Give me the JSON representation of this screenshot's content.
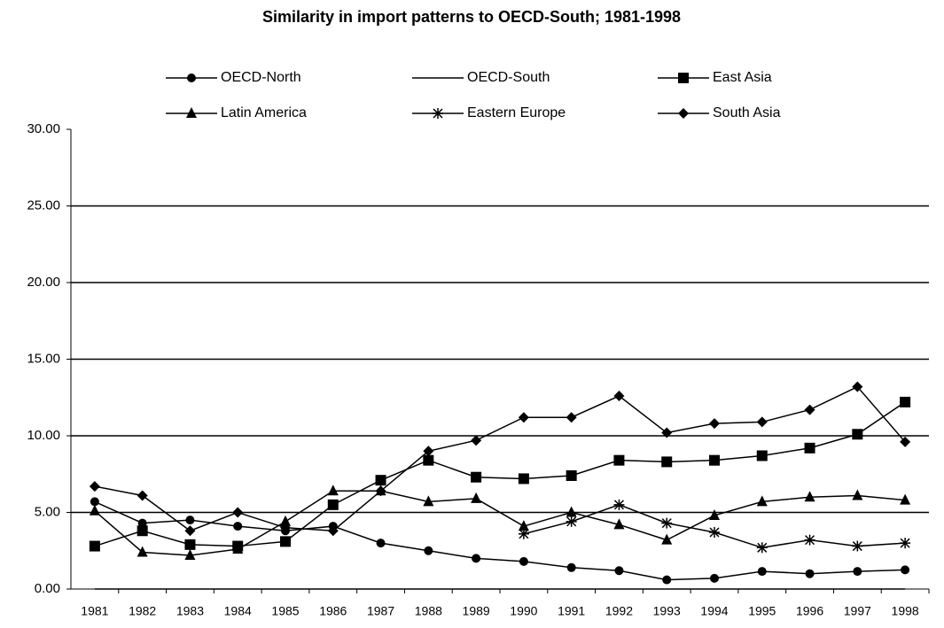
{
  "chart_data": {
    "type": "line",
    "title": "Similarity in import patterns to OECD-South; 1981-1998",
    "categories": [
      "1981",
      "1982",
      "1983",
      "1984",
      "1985",
      "1986",
      "1987",
      "1988",
      "1989",
      "1990",
      "1991",
      "1992",
      "1993",
      "1994",
      "1995",
      "1996",
      "1997",
      "1998"
    ],
    "series": [
      {
        "name": "OECD-North",
        "color": "#000000",
        "marker": "circle",
        "values": [
          5.7,
          4.3,
          4.5,
          4.1,
          3.8,
          4.1,
          3.0,
          2.5,
          2.0,
          1.8,
          1.4,
          1.2,
          0.6,
          0.7,
          1.15,
          1.0,
          1.15,
          1.25
        ]
      },
      {
        "name": "OECD-South",
        "color": "#000000",
        "marker": "none",
        "values": [
          0,
          0,
          0,
          0,
          0,
          0,
          0,
          0,
          0,
          0,
          0,
          0,
          0,
          0,
          0,
          0,
          0,
          0
        ]
      },
      {
        "name": "East Asia",
        "color": "#000000",
        "marker": "square",
        "values": [
          2.8,
          3.8,
          2.9,
          2.8,
          3.1,
          5.5,
          7.1,
          8.4,
          7.3,
          7.2,
          7.4,
          8.4,
          8.3,
          8.4,
          8.7,
          9.2,
          10.1,
          12.2
        ]
      },
      {
        "name": "Latin America",
        "color": "#000000",
        "marker": "triangle",
        "values": [
          5.1,
          2.4,
          2.2,
          2.6,
          4.4,
          6.4,
          6.4,
          5.7,
          5.9,
          4.1,
          5.0,
          4.2,
          3.2,
          4.8,
          5.7,
          6.0,
          6.1,
          5.8
        ]
      },
      {
        "name": "Eastern Europe",
        "color": "#000000",
        "marker": "star",
        "values": [
          null,
          null,
          null,
          null,
          null,
          null,
          null,
          null,
          null,
          3.6,
          4.4,
          5.5,
          4.3,
          3.7,
          2.7,
          3.2,
          2.8,
          3.0
        ]
      },
      {
        "name": "South Asia",
        "color": "#000000",
        "marker": "diamond",
        "values": [
          6.7,
          6.1,
          3.8,
          5.0,
          4.0,
          3.8,
          6.4,
          9.0,
          9.7,
          11.2,
          11.2,
          12.6,
          10.2,
          10.8,
          10.9,
          11.7,
          13.2,
          9.6
        ]
      }
    ],
    "ylim": [
      0,
      30
    ],
    "yticks": [
      {
        "value": 0,
        "label": "0.00"
      },
      {
        "value": 5,
        "label": "5.00"
      },
      {
        "value": 10,
        "label": "10.00"
      },
      {
        "value": 15,
        "label": "15.00"
      },
      {
        "value": 20,
        "label": "20.00"
      },
      {
        "value": 25,
        "label": "25.00"
      },
      {
        "value": 30,
        "label": "30.00"
      }
    ],
    "grid": true
  }
}
